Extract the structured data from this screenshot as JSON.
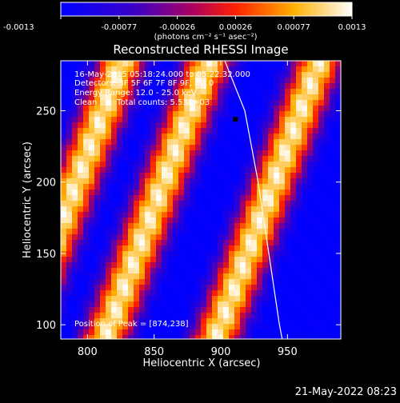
{
  "chart_data": {
    "type": "heatmap",
    "title": "Reconstructed RHESSI Image",
    "xlabel": "Heliocentric X (arcsec)",
    "ylabel": "Heliocentric Y (arcsec)",
    "xlim": [
      780,
      990
    ],
    "ylim": [
      90,
      285
    ],
    "x_ticks": [
      800,
      850,
      900,
      950
    ],
    "y_ticks": [
      100,
      150,
      200,
      250
    ],
    "colorbar": {
      "range": [
        -0.0013,
        0.0013
      ],
      "ticks": [
        "-0.0013",
        "-0.00077",
        "-0.00026",
        "0.00026",
        "0.00077",
        "0.0013"
      ],
      "units": "(photons cm⁻² s⁻¹ asec⁻²)",
      "colormap": "blue-purple-red-orange-yellow-white"
    },
    "annotations": {
      "time": "16-May-2015 05:18:24.000 to 05:22:32.000",
      "detectors": "Detectors: 3F 5F 6F 7F 8F 9F, Att 0",
      "energy": "Energy Range: 12.0 - 25.0 keV",
      "clean_label": "Clean",
      "counts": "Total counts: 5.53E+03",
      "peak": "Position of Peak = [874,238]"
    },
    "stripes": {
      "description_values": "bright emission bands at reconstructed heliocentric positions (x offset at y=250)",
      "ridge_x_at_250": [
        812,
        877,
        960
      ],
      "ridge_slope_x_per_y": 0.4,
      "peak_value": 0.0013
    },
    "limb_curve": [
      {
        "x": 903,
        "y": 285
      },
      {
        "x": 918,
        "y": 250
      },
      {
        "x": 928,
        "y": 200
      },
      {
        "x": 936,
        "y": 150
      },
      {
        "x": 944,
        "y": 100
      },
      {
        "x": 946,
        "y": 90
      }
    ],
    "marker_point": {
      "x": 911,
      "y": 244
    }
  },
  "footer": {
    "timestamp": "21-May-2022 08:23"
  }
}
